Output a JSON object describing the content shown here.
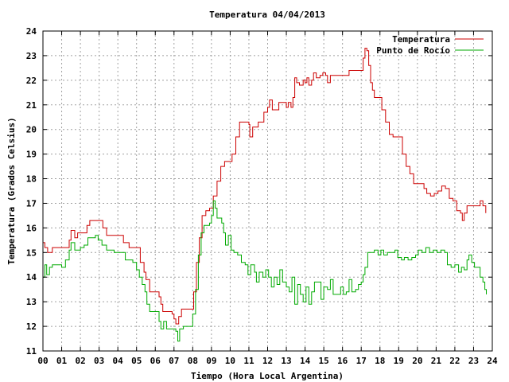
{
  "chart_data": {
    "type": "line",
    "title": "Temperatura 04/04/2013",
    "xlabel": "Tiempo (Hora Local Argentina)",
    "ylabel": "Temperatura (Grados Celsius)",
    "xlim": [
      0,
      24
    ],
    "ylim": [
      11,
      24
    ],
    "x_ticks": [
      "00",
      "01",
      "02",
      "03",
      "04",
      "05",
      "06",
      "07",
      "08",
      "09",
      "10",
      "11",
      "12",
      "13",
      "14",
      "15",
      "16",
      "17",
      "18",
      "19",
      "20",
      "21",
      "22",
      "23",
      "24"
    ],
    "y_ticks": [
      "11",
      "12",
      "13",
      "14",
      "15",
      "16",
      "17",
      "18",
      "19",
      "20",
      "21",
      "22",
      "23",
      "24"
    ],
    "grid": true,
    "legend_position": "top-right",
    "series": [
      {
        "name": "Temperatura",
        "color": "#cc0000",
        "points": [
          [
            0.0,
            15.4
          ],
          [
            0.1,
            15.2
          ],
          [
            0.25,
            15.0
          ],
          [
            0.5,
            15.2
          ],
          [
            0.8,
            15.2
          ],
          [
            1.2,
            15.2
          ],
          [
            1.4,
            15.5
          ],
          [
            1.5,
            15.9
          ],
          [
            1.7,
            15.6
          ],
          [
            1.85,
            15.8
          ],
          [
            2.2,
            15.8
          ],
          [
            2.35,
            16.1
          ],
          [
            2.5,
            16.3
          ],
          [
            2.8,
            16.3
          ],
          [
            3.0,
            16.3
          ],
          [
            3.2,
            16.0
          ],
          [
            3.4,
            15.7
          ],
          [
            3.8,
            15.7
          ],
          [
            4.1,
            15.7
          ],
          [
            4.3,
            15.4
          ],
          [
            4.6,
            15.2
          ],
          [
            5.0,
            15.2
          ],
          [
            5.2,
            14.6
          ],
          [
            5.4,
            14.2
          ],
          [
            5.5,
            13.9
          ],
          [
            5.7,
            13.4
          ],
          [
            6.0,
            13.4
          ],
          [
            6.2,
            13.2
          ],
          [
            6.3,
            12.9
          ],
          [
            6.4,
            12.6
          ],
          [
            6.7,
            12.6
          ],
          [
            6.9,
            12.5
          ],
          [
            7.0,
            12.3
          ],
          [
            7.1,
            12.1
          ],
          [
            7.25,
            12.4
          ],
          [
            7.4,
            12.7
          ],
          [
            7.7,
            12.7
          ],
          [
            7.9,
            12.7
          ],
          [
            8.05,
            13.4
          ],
          [
            8.2,
            14.6
          ],
          [
            8.35,
            15.6
          ],
          [
            8.5,
            16.5
          ],
          [
            8.7,
            16.7
          ],
          [
            8.9,
            16.8
          ],
          [
            9.1,
            17.3
          ],
          [
            9.3,
            17.9
          ],
          [
            9.5,
            18.5
          ],
          [
            9.7,
            18.7
          ],
          [
            10.0,
            18.7
          ],
          [
            10.1,
            19.0
          ],
          [
            10.3,
            19.7
          ],
          [
            10.5,
            20.3
          ],
          [
            10.8,
            20.3
          ],
          [
            11.0,
            20.2
          ],
          [
            11.05,
            19.7
          ],
          [
            11.2,
            20.1
          ],
          [
            11.5,
            20.3
          ],
          [
            11.8,
            20.7
          ],
          [
            12.0,
            20.9
          ],
          [
            12.1,
            21.2
          ],
          [
            12.25,
            20.8
          ],
          [
            12.4,
            20.8
          ],
          [
            12.5,
            20.8
          ],
          [
            12.6,
            21.1
          ],
          [
            12.9,
            21.1
          ],
          [
            13.0,
            20.9
          ],
          [
            13.1,
            21.1
          ],
          [
            13.25,
            20.9
          ],
          [
            13.35,
            21.3
          ],
          [
            13.45,
            22.1
          ],
          [
            13.55,
            21.9
          ],
          [
            13.7,
            21.8
          ],
          [
            13.9,
            22.0
          ],
          [
            14.0,
            21.9
          ],
          [
            14.1,
            22.1
          ],
          [
            14.2,
            21.8
          ],
          [
            14.35,
            22.0
          ],
          [
            14.45,
            22.3
          ],
          [
            14.6,
            22.1
          ],
          [
            14.8,
            22.2
          ],
          [
            14.95,
            22.3
          ],
          [
            15.1,
            22.2
          ],
          [
            15.2,
            21.9
          ],
          [
            15.35,
            22.2
          ],
          [
            15.6,
            22.2
          ],
          [
            15.8,
            22.2
          ],
          [
            16.0,
            22.2
          ],
          [
            16.2,
            22.2
          ],
          [
            16.35,
            22.4
          ],
          [
            16.6,
            22.4
          ],
          [
            16.8,
            22.4
          ],
          [
            17.0,
            22.4
          ],
          [
            17.1,
            22.9
          ],
          [
            17.2,
            23.3
          ],
          [
            17.3,
            23.2
          ],
          [
            17.4,
            22.6
          ],
          [
            17.5,
            21.9
          ],
          [
            17.6,
            21.6
          ],
          [
            17.7,
            21.3
          ],
          [
            18.0,
            21.3
          ],
          [
            18.1,
            20.8
          ],
          [
            18.3,
            20.3
          ],
          [
            18.5,
            19.8
          ],
          [
            18.7,
            19.7
          ],
          [
            19.0,
            19.7
          ],
          [
            19.2,
            19.0
          ],
          [
            19.4,
            18.5
          ],
          [
            19.6,
            18.2
          ],
          [
            19.8,
            17.8
          ],
          [
            20.0,
            17.8
          ],
          [
            20.2,
            17.8
          ],
          [
            20.35,
            17.6
          ],
          [
            20.5,
            17.4
          ],
          [
            20.7,
            17.3
          ],
          [
            20.9,
            17.4
          ],
          [
            21.1,
            17.5
          ],
          [
            21.3,
            17.7
          ],
          [
            21.5,
            17.6
          ],
          [
            21.7,
            17.2
          ],
          [
            21.9,
            17.1
          ],
          [
            22.1,
            16.7
          ],
          [
            22.3,
            16.6
          ],
          [
            22.4,
            16.3
          ],
          [
            22.5,
            16.6
          ],
          [
            22.65,
            16.9
          ],
          [
            23.0,
            16.9
          ],
          [
            23.3,
            16.9
          ],
          [
            23.35,
            17.1
          ],
          [
            23.5,
            16.9
          ],
          [
            23.65,
            16.6
          ]
        ]
      },
      {
        "name": "Punto de Rocío",
        "color": "#00aa00",
        "points": [
          [
            0.0,
            14.0
          ],
          [
            0.1,
            14.5
          ],
          [
            0.2,
            14.1
          ],
          [
            0.35,
            14.4
          ],
          [
            0.5,
            14.5
          ],
          [
            0.8,
            14.5
          ],
          [
            1.0,
            14.4
          ],
          [
            1.2,
            14.7
          ],
          [
            1.4,
            15.1
          ],
          [
            1.5,
            15.4
          ],
          [
            1.7,
            15.1
          ],
          [
            2.0,
            15.2
          ],
          [
            2.2,
            15.3
          ],
          [
            2.4,
            15.6
          ],
          [
            2.6,
            15.6
          ],
          [
            2.8,
            15.7
          ],
          [
            2.95,
            15.5
          ],
          [
            3.15,
            15.3
          ],
          [
            3.4,
            15.1
          ],
          [
            3.8,
            15.0
          ],
          [
            4.2,
            15.0
          ],
          [
            4.4,
            14.7
          ],
          [
            4.8,
            14.6
          ],
          [
            5.0,
            14.3
          ],
          [
            5.15,
            14.0
          ],
          [
            5.3,
            13.7
          ],
          [
            5.45,
            13.4
          ],
          [
            5.55,
            12.9
          ],
          [
            5.7,
            12.6
          ],
          [
            6.0,
            12.6
          ],
          [
            6.2,
            12.2
          ],
          [
            6.3,
            11.9
          ],
          [
            6.45,
            12.2
          ],
          [
            6.6,
            11.9
          ],
          [
            6.8,
            11.9
          ],
          [
            7.0,
            11.9
          ],
          [
            7.1,
            11.8
          ],
          [
            7.2,
            11.4
          ],
          [
            7.3,
            11.9
          ],
          [
            7.5,
            12.0
          ],
          [
            7.8,
            12.0
          ],
          [
            8.0,
            12.5
          ],
          [
            8.15,
            13.5
          ],
          [
            8.3,
            14.9
          ],
          [
            8.45,
            15.8
          ],
          [
            8.6,
            16.1
          ],
          [
            8.9,
            16.2
          ],
          [
            9.0,
            16.5
          ],
          [
            9.1,
            17.1
          ],
          [
            9.2,
            16.8
          ],
          [
            9.3,
            16.4
          ],
          [
            9.45,
            16.4
          ],
          [
            9.55,
            16.2
          ],
          [
            9.65,
            15.8
          ],
          [
            9.75,
            15.3
          ],
          [
            9.9,
            15.7
          ],
          [
            10.05,
            15.1
          ],
          [
            10.2,
            15.0
          ],
          [
            10.4,
            14.9
          ],
          [
            10.6,
            14.6
          ],
          [
            10.8,
            14.5
          ],
          [
            10.95,
            14.1
          ],
          [
            11.1,
            14.5
          ],
          [
            11.3,
            14.2
          ],
          [
            11.4,
            13.8
          ],
          [
            11.55,
            14.2
          ],
          [
            11.75,
            14.0
          ],
          [
            11.9,
            14.3
          ],
          [
            12.05,
            14.0
          ],
          [
            12.2,
            13.6
          ],
          [
            12.35,
            14.0
          ],
          [
            12.5,
            13.7
          ],
          [
            12.65,
            14.3
          ],
          [
            12.8,
            13.8
          ],
          [
            13.0,
            13.6
          ],
          [
            13.15,
            13.4
          ],
          [
            13.3,
            14.0
          ],
          [
            13.45,
            12.9
          ],
          [
            13.6,
            13.7
          ],
          [
            13.75,
            13.3
          ],
          [
            13.9,
            13.0
          ],
          [
            14.05,
            13.6
          ],
          [
            14.2,
            12.9
          ],
          [
            14.35,
            13.4
          ],
          [
            14.5,
            13.8
          ],
          [
            14.7,
            13.8
          ],
          [
            14.85,
            13.1
          ],
          [
            15.0,
            13.6
          ],
          [
            15.2,
            13.5
          ],
          [
            15.35,
            13.9
          ],
          [
            15.5,
            13.3
          ],
          [
            15.7,
            13.3
          ],
          [
            15.9,
            13.6
          ],
          [
            16.05,
            13.3
          ],
          [
            16.2,
            13.4
          ],
          [
            16.35,
            13.9
          ],
          [
            16.5,
            13.4
          ],
          [
            16.7,
            13.5
          ],
          [
            16.85,
            13.7
          ],
          [
            17.0,
            13.8
          ],
          [
            17.1,
            14.1
          ],
          [
            17.2,
            14.4
          ],
          [
            17.35,
            15.0
          ],
          [
            17.5,
            15.0
          ],
          [
            17.7,
            15.1
          ],
          [
            17.9,
            14.9
          ],
          [
            18.05,
            15.1
          ],
          [
            18.2,
            14.9
          ],
          [
            18.4,
            15.0
          ],
          [
            18.6,
            15.0
          ],
          [
            18.8,
            15.1
          ],
          [
            18.95,
            14.8
          ],
          [
            19.15,
            14.7
          ],
          [
            19.3,
            14.8
          ],
          [
            19.5,
            14.7
          ],
          [
            19.7,
            14.8
          ],
          [
            19.9,
            14.9
          ],
          [
            20.05,
            15.1
          ],
          [
            20.25,
            15.0
          ],
          [
            20.45,
            15.2
          ],
          [
            20.65,
            15.0
          ],
          [
            20.85,
            15.1
          ],
          [
            21.05,
            15.0
          ],
          [
            21.25,
            15.1
          ],
          [
            21.45,
            15.0
          ],
          [
            21.6,
            14.5
          ],
          [
            21.8,
            14.4
          ],
          [
            22.0,
            14.5
          ],
          [
            22.2,
            14.2
          ],
          [
            22.35,
            14.4
          ],
          [
            22.5,
            14.3
          ],
          [
            22.65,
            14.7
          ],
          [
            22.75,
            14.9
          ],
          [
            22.9,
            14.6
          ],
          [
            23.05,
            14.4
          ],
          [
            23.2,
            14.4
          ],
          [
            23.35,
            14.0
          ],
          [
            23.5,
            13.8
          ],
          [
            23.6,
            13.5
          ],
          [
            23.68,
            13.3
          ]
        ]
      }
    ]
  }
}
